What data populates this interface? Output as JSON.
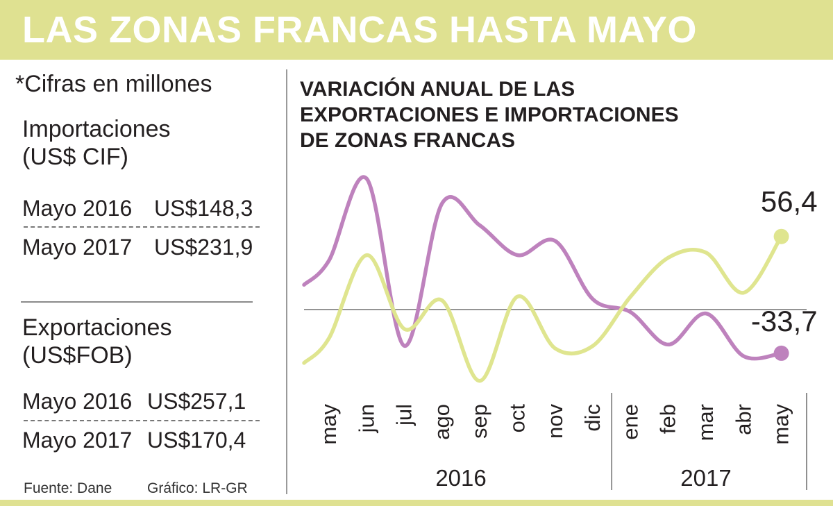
{
  "header": {
    "title": "LAS ZONAS FRANCAS HASTA MAYO"
  },
  "left_panel": {
    "note": "*Cifras en millones",
    "imports": {
      "title_line1": "Importaciones",
      "title_line2": "(US$ CIF)",
      "rows": [
        {
          "label": "Mayo 2016",
          "value": "US$148,3"
        },
        {
          "label": "Mayo 2017",
          "value": "US$231,9"
        }
      ]
    },
    "exports": {
      "title_line1": "Exportaciones",
      "title_line2": "(US$FOB)",
      "rows": [
        {
          "label": "Mayo 2016",
          "value": "US$257,1"
        },
        {
          "label": "Mayo 2017",
          "value": "US$170,4"
        }
      ]
    },
    "source": "Fuente: Dane",
    "credit": "Gráfico: LR-GR"
  },
  "chart_data": {
    "type": "line",
    "title": "VARIACIÓN ANUAL DE LAS EXPORTACIONES E IMPORTACIONES DE ZONAS FRANCAS",
    "title_lines": [
      "VARIACIÓN ANUAL DE LAS",
      "EXPORTACIONES E IMPORTACIONES",
      "DE ZONAS FRANCAS"
    ],
    "categories": [
      "may",
      "jun",
      "jul",
      "ago",
      "sep",
      "oct",
      "nov",
      "dic",
      "ene",
      "feb",
      "mar",
      "abr",
      "may"
    ],
    "year_groups": [
      {
        "label": "2016",
        "start": 0,
        "end": 7
      },
      {
        "label": "2017",
        "start": 8,
        "end": 12
      }
    ],
    "series": [
      {
        "color": "#be82bd",
        "values": [
          38,
          101,
          -28,
          82,
          65,
          42,
          53,
          8,
          -2,
          -27,
          -3,
          -36,
          -33.7
        ],
        "end_label": "-33,7"
      },
      {
        "color": "#dfe58f",
        "values": [
          -22,
          42,
          -15,
          7,
          -55,
          10,
          -30,
          -28,
          10,
          40,
          44,
          13,
          56.4
        ],
        "end_label": "56,4"
      }
    ],
    "ylim": [
      -60,
      105
    ],
    "zero_line": true,
    "grid": false,
    "legend": "none"
  }
}
